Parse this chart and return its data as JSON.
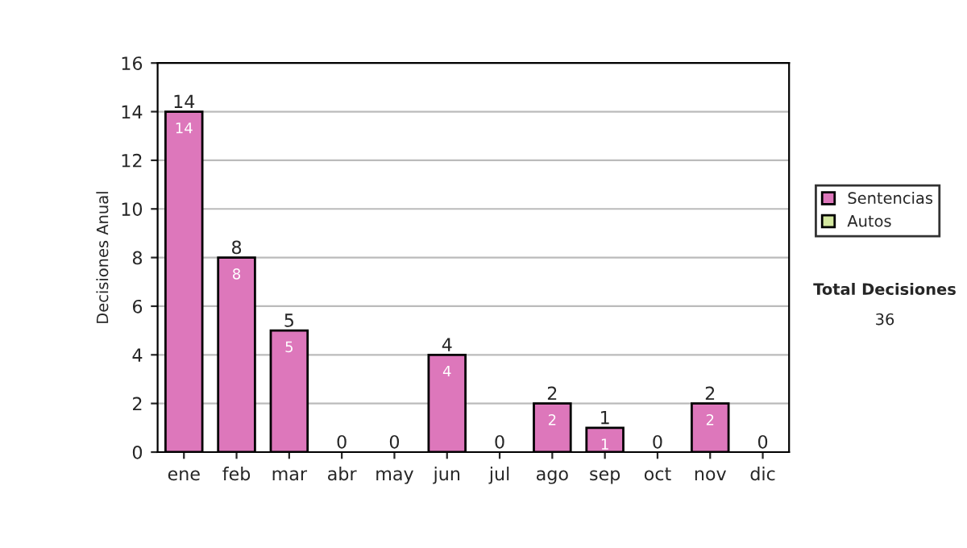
{
  "chart_data": {
    "type": "bar",
    "stacked": true,
    "ylabel": "Decisiones Anual",
    "categories": [
      "ene",
      "feb",
      "mar",
      "abr",
      "may",
      "jun",
      "jul",
      "ago",
      "sep",
      "oct",
      "nov",
      "dic"
    ],
    "series": [
      {
        "name": "Sentencias",
        "color": "#dd77bb",
        "values": [
          14,
          8,
          5,
          0,
          0,
          4,
          0,
          2,
          1,
          0,
          2,
          0
        ],
        "value_labels": [
          "14",
          "8",
          "5",
          null,
          null,
          "4",
          null,
          "2",
          "1",
          null,
          "2",
          null
        ]
      },
      {
        "name": "Autos",
        "color": "#d4e8a0",
        "values": [
          0,
          0,
          0,
          0,
          0,
          0,
          0,
          0,
          0,
          0,
          0,
          0
        ]
      }
    ],
    "totals": [
      "14",
      "8",
      "5",
      "0",
      "0",
      "4",
      "0",
      "2",
      "1",
      "0",
      "2",
      "0"
    ],
    "ylim": [
      0,
      16
    ],
    "yticks": [
      0,
      2,
      4,
      6,
      8,
      10,
      12,
      14,
      16
    ],
    "grid": "y",
    "legend": "right",
    "annotations": [
      "Total Decisiones",
      "36"
    ]
  }
}
